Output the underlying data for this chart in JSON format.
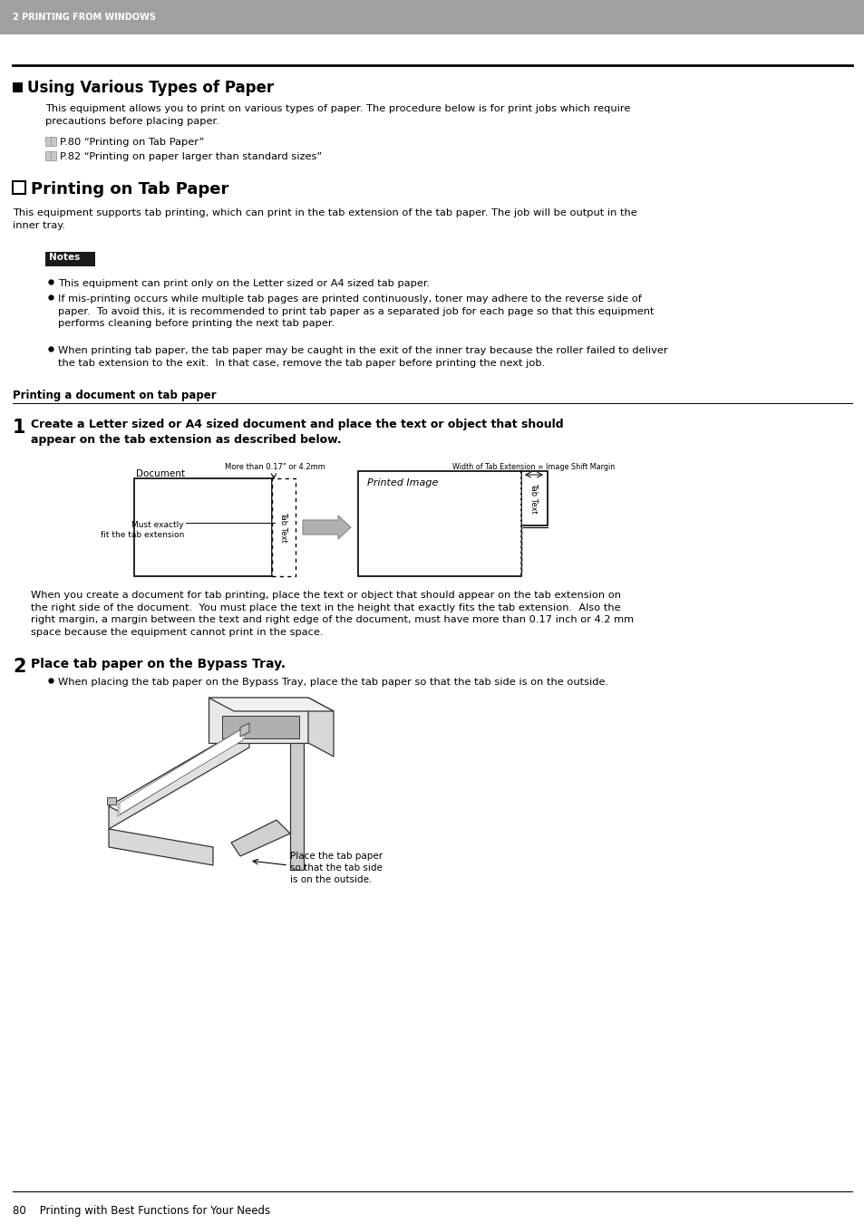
{
  "bg_color": "#ffffff",
  "header_bg": "#aaaaaa",
  "header_text": "2 PRINTING FROM WINDOWS",
  "header_text_color": "#ffffff",
  "section1_title": "■ Using Various Types of Paper",
  "section1_body1": "This equipment allows you to print on various types of paper. The procedure below is for print jobs which require\nprecautions before placing paper.",
  "section1_ref1": "P.80 “Printing on Tab Paper”",
  "section1_ref2": "P.82 “Printing on paper larger than standard sizes”",
  "section2_title": "Printing on Tab Paper",
  "section2_body": "This equipment supports tab printing, which can print in the tab extension of the tab paper. The job will be output in the\ninner tray.",
  "notes_label": "Notes",
  "bullet1": "This equipment can print only on the Letter sized or A4 sized tab paper.",
  "bullet2": "If mis-printing occurs while multiple tab pages are printed continuously, toner may adhere to the reverse side of\npaper.  To avoid this, it is recommended to print tab paper as a separated job for each page so that this equipment\nperforms cleaning before printing the next tab paper.",
  "bullet3": "When printing tab paper, the tab paper may be caught in the exit of the inner tray because the roller failed to deliver\nthe tab extension to the exit.  In that case, remove the tab paper before printing the next job.",
  "subsection_title": "Printing a document on tab paper",
  "step1_text": "Create a Letter sized or A4 sized document and place the text or object that should\nappear on the tab extension as described below.",
  "diagram_doc_label": "Document",
  "diagram_margin_label": "More than 0.17\" or 4.2mm",
  "diagram_width_label": "Width of Tab Extension = Image Shift Margin",
  "diagram_printed_label": "Printed Image",
  "diagram_must_label": "Must exactly\nfit the tab extension",
  "diagram_tabtext_label": "Tab Text",
  "step1_body": "When you create a document for tab printing, place the text or object that should appear on the tab extension on\nthe right side of the document.  You must place the text in the height that exactly fits the tab extension.  Also the\nright margin, a margin between the text and right edge of the document, must have more than 0.17 inch or 4.2 mm\nspace because the equipment cannot print in the space.",
  "step2_text": "Place tab paper on the Bypass Tray.",
  "step2_bullet": "When placing the tab paper on the Bypass Tray, place the tab paper so that the tab side is on the outside.",
  "caption": "Place the tab paper\nso that the tab side\nis on the outside.",
  "footer_text": "80    Printing with Best Functions for Your Needs"
}
